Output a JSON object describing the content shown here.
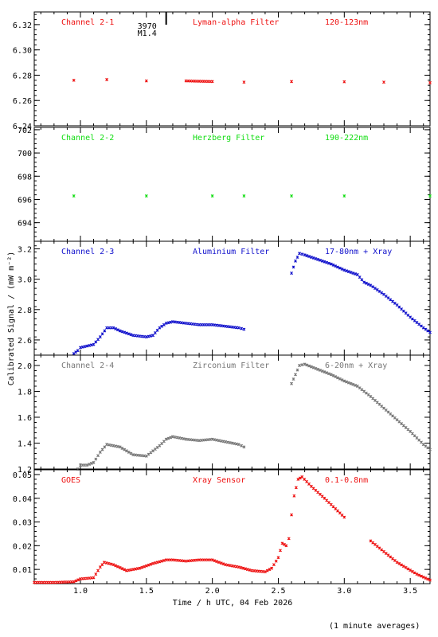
{
  "ylabel": "Calibrated Signal / (mW m⁻²)",
  "footnote": "(1 minute averages)",
  "colors": {
    "red": "#ee1111",
    "green": "#11dd11",
    "blue": "#1111cc",
    "grey": "#777777",
    "axis": "#000000"
  },
  "chart_data": {
    "type": "scatter",
    "xlabel": "Time / h UTC, 04 Feb 2026",
    "xlim": [
      0.65,
      3.65
    ],
    "xticks": [
      1.0,
      1.5,
      2.0,
      2.5,
      3.0,
      3.5
    ],
    "xtick_labels": [
      "1.0",
      "1.5",
      "2.0",
      "2.5",
      "3.0",
      "3.5"
    ],
    "ylabel": "Calibrated Signal / (mW m⁻²)",
    "marker": "x",
    "flare_marker": {
      "x": 1.65,
      "label_line1": "3970",
      "label_line2": "M1.4"
    },
    "panels": [
      {
        "label_left": "Channel 2-1",
        "label_center": "Lyman-alpha Filter",
        "label_right": "120-123nm",
        "color": "red",
        "ylim": [
          6.24,
          6.33
        ],
        "yticks": [
          6.24,
          6.26,
          6.28,
          6.3,
          6.32
        ],
        "ytick_labels": [
          "6.24",
          "6.26",
          "6.28",
          "6.30",
          "6.32"
        ],
        "points": [
          [
            0.95,
            6.276
          ],
          [
            1.2,
            6.2765
          ],
          [
            1.5,
            6.2755
          ],
          [
            1.8,
            6.2755
          ],
          [
            2.0,
            6.275
          ],
          [
            2.24,
            6.2745
          ],
          [
            2.6,
            6.275
          ],
          [
            3.0,
            6.2748
          ],
          [
            3.3,
            6.2745
          ],
          [
            3.65,
            6.274
          ]
        ]
      },
      {
        "label_left": "Channel 2-2",
        "label_center": "Herzberg Filter",
        "label_right": "190-222nm",
        "color": "green",
        "ylim": [
          692.4,
          702.2
        ],
        "yticks": [
          694,
          696,
          698,
          700,
          702
        ],
        "ytick_labels": [
          "694",
          "696",
          "698",
          "700",
          "702"
        ],
        "points": [
          [
            0.95,
            696.3
          ],
          [
            1.5,
            696.3
          ],
          [
            2.0,
            696.3
          ],
          [
            2.24,
            696.3
          ],
          [
            2.6,
            696.3
          ],
          [
            3.0,
            696.3
          ],
          [
            3.65,
            696.3
          ]
        ]
      },
      {
        "label_left": "Channel 2-3",
        "label_center": "Aluminium Filter",
        "label_right": "17-80nm + Xray",
        "color": "blue",
        "ylim": [
          2.5,
          3.25
        ],
        "yticks": [
          2.6,
          2.8,
          3.0,
          3.2
        ],
        "ytick_labels": [
          "2.6",
          "2.8",
          "3.0",
          "3.2"
        ],
        "points": [
          [
            0.95,
            2.51
          ],
          [
            0.98,
            2.53
          ],
          [
            1.0,
            2.55
          ],
          [
            1.05,
            2.56
          ],
          [
            1.1,
            2.57
          ],
          [
            1.15,
            2.62
          ],
          [
            1.2,
            2.68
          ],
          [
            1.25,
            2.68
          ],
          [
            1.3,
            2.66
          ],
          [
            1.4,
            2.63
          ],
          [
            1.5,
            2.62
          ],
          [
            1.55,
            2.63
          ],
          [
            1.6,
            2.68
          ],
          [
            1.65,
            2.71
          ],
          [
            1.7,
            2.72
          ],
          [
            1.8,
            2.71
          ],
          [
            1.9,
            2.7
          ],
          [
            2.0,
            2.7
          ],
          [
            2.1,
            2.69
          ],
          [
            2.2,
            2.68
          ],
          [
            2.24,
            2.67
          ],
          [
            2.6,
            3.04
          ],
          [
            2.63,
            3.12
          ],
          [
            2.66,
            3.17
          ],
          [
            2.7,
            3.16
          ],
          [
            2.8,
            3.13
          ],
          [
            2.9,
            3.1
          ],
          [
            3.0,
            3.06
          ],
          [
            3.1,
            3.03
          ],
          [
            3.15,
            2.98
          ],
          [
            3.2,
            2.96
          ],
          [
            3.3,
            2.9
          ],
          [
            3.4,
            2.83
          ],
          [
            3.5,
            2.75
          ],
          [
            3.6,
            2.68
          ],
          [
            3.65,
            2.65
          ]
        ]
      },
      {
        "label_left": "Channel 2-4",
        "label_center": "Zirconium Filter",
        "label_right": "6-20nm + Xray",
        "color": "grey",
        "ylim": [
          1.2,
          2.08
        ],
        "yticks": [
          1.2,
          1.4,
          1.6,
          1.8,
          2.0
        ],
        "ytick_labels": [
          "1.2",
          "1.4",
          "1.6",
          "1.8",
          "2.0"
        ],
        "points": [
          [
            0.95,
            1.19
          ],
          [
            0.98,
            1.2
          ],
          [
            1.0,
            1.23
          ],
          [
            1.05,
            1.23
          ],
          [
            1.1,
            1.25
          ],
          [
            1.15,
            1.33
          ],
          [
            1.2,
            1.39
          ],
          [
            1.3,
            1.37
          ],
          [
            1.4,
            1.31
          ],
          [
            1.5,
            1.3
          ],
          [
            1.6,
            1.38
          ],
          [
            1.65,
            1.43
          ],
          [
            1.7,
            1.45
          ],
          [
            1.8,
            1.43
          ],
          [
            1.9,
            1.42
          ],
          [
            2.0,
            1.43
          ],
          [
            2.1,
            1.41
          ],
          [
            2.2,
            1.39
          ],
          [
            2.24,
            1.37
          ],
          [
            2.6,
            1.86
          ],
          [
            2.63,
            1.93
          ],
          [
            2.66,
            2.0
          ],
          [
            2.7,
            2.01
          ],
          [
            2.8,
            1.97
          ],
          [
            2.9,
            1.93
          ],
          [
            3.0,
            1.88
          ],
          [
            3.1,
            1.84
          ],
          [
            3.2,
            1.76
          ],
          [
            3.3,
            1.67
          ],
          [
            3.4,
            1.58
          ],
          [
            3.5,
            1.49
          ],
          [
            3.6,
            1.39
          ],
          [
            3.65,
            1.35
          ]
        ]
      },
      {
        "label_left": "GOES",
        "label_center": "Xray Sensor",
        "label_right": "0.1-0.8nm",
        "color": "red",
        "ylim": [
          0.004,
          0.052
        ],
        "yticks": [
          0.01,
          0.02,
          0.03,
          0.04,
          0.05
        ],
        "ytick_labels": [
          "0.01",
          "0.02",
          "0.03",
          "0.04",
          "0.05"
        ],
        "points": [
          [
            0.65,
            0.0045
          ],
          [
            0.8,
            0.0045
          ],
          [
            0.95,
            0.0048
          ],
          [
            1.0,
            0.006
          ],
          [
            1.1,
            0.0065
          ],
          [
            1.15,
            0.011
          ],
          [
            1.18,
            0.013
          ],
          [
            1.25,
            0.012
          ],
          [
            1.35,
            0.0095
          ],
          [
            1.45,
            0.0105
          ],
          [
            1.55,
            0.0125
          ],
          [
            1.65,
            0.014
          ],
          [
            1.7,
            0.014
          ],
          [
            1.8,
            0.0135
          ],
          [
            1.9,
            0.014
          ],
          [
            2.0,
            0.014
          ],
          [
            2.1,
            0.012
          ],
          [
            2.2,
            0.011
          ],
          [
            2.3,
            0.0095
          ],
          [
            2.4,
            0.009
          ],
          [
            2.45,
            0.0105
          ],
          [
            2.5,
            0.015
          ],
          [
            2.53,
            0.021
          ],
          [
            2.56,
            0.02
          ],
          [
            2.58,
            0.023
          ],
          [
            2.6,
            0.033
          ],
          [
            2.62,
            0.041
          ],
          [
            2.65,
            0.048
          ],
          [
            2.68,
            0.049
          ],
          [
            2.75,
            0.045
          ],
          [
            2.85,
            0.04
          ],
          [
            3.0,
            0.032
          ],
          [
            3.2,
            0.022
          ],
          [
            3.4,
            0.013
          ],
          [
            3.55,
            0.008
          ],
          [
            3.65,
            0.0055
          ]
        ]
      }
    ]
  }
}
